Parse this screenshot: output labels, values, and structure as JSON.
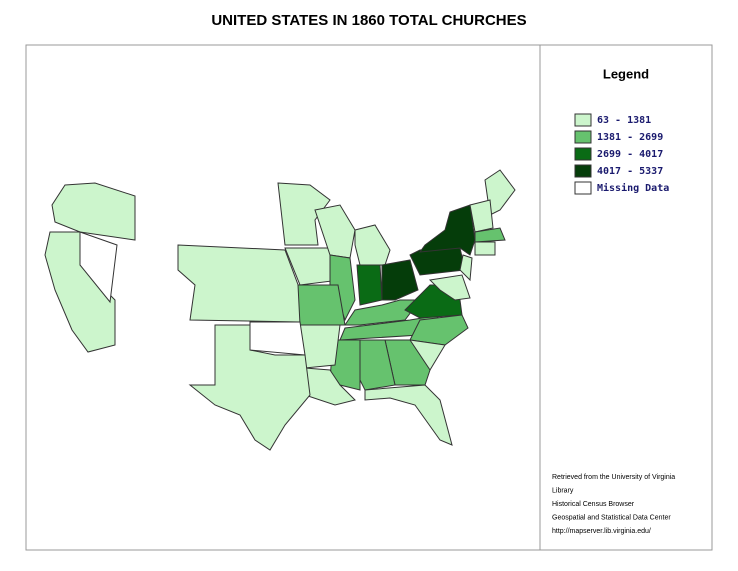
{
  "header": {
    "title": "UNITED STATES IN 1860 TOTAL CHURCHES"
  },
  "legend": {
    "title": "Legend",
    "items": [
      {
        "label": "63 - 1381",
        "color": "#ccf5cc"
      },
      {
        "label": "1381 - 2699",
        "color": "#66c26e"
      },
      {
        "label": "2699 - 4017",
        "color": "#0a6b15"
      },
      {
        "label": "4017 - 5337",
        "color": "#053d0a"
      },
      {
        "label": "Missing Data",
        "color": "#ffffff"
      }
    ]
  },
  "credits": [
    "Retrieved from the University of Virginia",
    "Library",
    "Historical Census Browser",
    "Geospatial and Statistical Data Center",
    "http://mapserver.lib.virginia.edu/"
  ]
}
